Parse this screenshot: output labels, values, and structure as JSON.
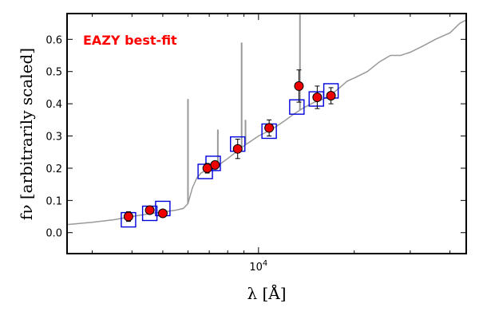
{
  "chart_data": {
    "type": "scatter",
    "title": "",
    "xlabel": "λ [Å]",
    "ylabel": "fν [arbitrarily scaled]",
    "x_scale": "log",
    "xlim": [
      2500,
      45000
    ],
    "ylim": [
      -0.065,
      0.68
    ],
    "y_ticks": [
      0.0,
      0.1,
      0.2,
      0.3,
      0.4,
      0.5,
      0.6
    ],
    "y_tick_labels": [
      "0.0",
      "0.1",
      "0.2",
      "0.3",
      "0.4",
      "0.5",
      "0.6"
    ],
    "x_ticks": [
      10000
    ],
    "x_tick_base": "10",
    "x_tick_exp": "4",
    "grid": false,
    "annotation": {
      "text": "EAZY best-fit",
      "color": "#ff0000"
    },
    "colors": {
      "template": "#999999",
      "model": "#0000dd",
      "observed": "#ee0000",
      "error": "#000000"
    },
    "template_spectrum": {
      "x": [
        2500,
        3000,
        3500,
        4000,
        4500,
        5000,
        5500,
        5800,
        6000,
        6200,
        6400,
        6600,
        7000,
        7500,
        8000,
        8500,
        9000,
        9500,
        10000,
        11000,
        12000,
        13000,
        14000,
        15000,
        16000,
        17000,
        18000,
        19000,
        20000,
        22000,
        24000,
        26000,
        28000,
        30000,
        33000,
        36000,
        40000,
        43000,
        45000
      ],
      "y": [
        0.025,
        0.032,
        0.04,
        0.05,
        0.058,
        0.064,
        0.07,
        0.075,
        0.09,
        0.14,
        0.17,
        0.185,
        0.2,
        0.21,
        0.23,
        0.25,
        0.27,
        0.285,
        0.3,
        0.32,
        0.345,
        0.37,
        0.39,
        0.405,
        0.415,
        0.43,
        0.45,
        0.47,
        0.48,
        0.5,
        0.53,
        0.55,
        0.55,
        0.56,
        0.58,
        0.6,
        0.62,
        0.65,
        0.66
      ]
    },
    "emission_lines": [
      {
        "x": 6000,
        "y": 0.415
      },
      {
        "x": 7450,
        "y": 0.32
      },
      {
        "x": 8850,
        "y": 0.59
      },
      {
        "x": 9100,
        "y": 0.35
      },
      {
        "x": 13500,
        "y": 0.68
      }
    ],
    "series": [
      {
        "x": [
          3900,
          4550,
          5000,
          6900,
          7300,
          8600,
          10800,
          13400,
          15300,
          16900
        ],
        "y": [
          0.05,
          0.07,
          0.06,
          0.2,
          0.21,
          0.26,
          0.325,
          0.455,
          0.42,
          0.425
        ],
        "yerr": [
          0.015,
          0.012,
          0.01,
          0.015,
          0.012,
          0.03,
          0.025,
          0.05,
          0.035,
          0.025
        ]
      },
      {
        "x": [
          3900,
          4550,
          5000,
          6800,
          7200,
          8600,
          10800,
          13200,
          15200,
          16900
        ],
        "y": [
          0.04,
          0.06,
          0.075,
          0.19,
          0.215,
          0.275,
          0.315,
          0.39,
          0.415,
          0.44
        ]
      }
    ]
  }
}
